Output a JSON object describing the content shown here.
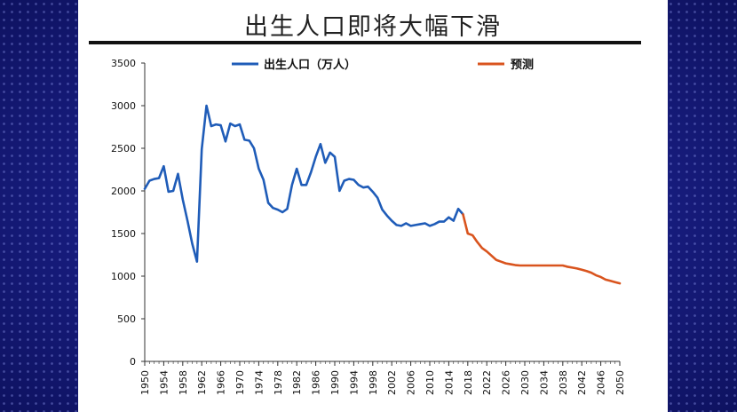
{
  "slide": {
    "title": "出生人口即将大幅下滑"
  },
  "colors": {
    "actual": "#1f5cb8",
    "forecast": "#d9541e",
    "slide_bg": "#ffffff",
    "backdrop": "#1a1f8a"
  },
  "chart_data": {
    "type": "line",
    "title": "出生人口即将大幅下滑",
    "xlabel": "",
    "ylabel": "",
    "xlim": [
      1950,
      2050
    ],
    "ylim": [
      0,
      3500
    ],
    "yticks": [
      0,
      500,
      1000,
      1500,
      2000,
      2500,
      3000,
      3500
    ],
    "xticks": [
      1950,
      1954,
      1958,
      1962,
      1966,
      1970,
      1974,
      1978,
      1982,
      1986,
      1990,
      1994,
      1998,
      2002,
      2006,
      2010,
      2014,
      2018,
      2022,
      2026,
      2030,
      2034,
      2038,
      2042,
      2046,
      2050
    ],
    "grid": false,
    "legend_position": "top",
    "series": [
      {
        "name": "出生人口（万人）",
        "color": "#1f5cb8",
        "x": [
          1950,
          1951,
          1952,
          1953,
          1954,
          1955,
          1956,
          1957,
          1958,
          1959,
          1960,
          1961,
          1962,
          1963,
          1964,
          1965,
          1966,
          1967,
          1968,
          1969,
          1970,
          1971,
          1972,
          1973,
          1974,
          1975,
          1976,
          1977,
          1978,
          1979,
          1980,
          1981,
          1982,
          1983,
          1984,
          1985,
          1986,
          1987,
          1988,
          1989,
          1990,
          1991,
          1992,
          1993,
          1994,
          1995,
          1996,
          1997,
          1998,
          1999,
          2000,
          2001,
          2002,
          2003,
          2004,
          2005,
          2006,
          2007,
          2008,
          2009,
          2010,
          2011,
          2012,
          2013,
          2014,
          2015,
          2016,
          2017
        ],
        "values": [
          2025,
          2120,
          2140,
          2150,
          2290,
          1990,
          2000,
          2200,
          1900,
          1650,
          1380,
          1170,
          2490,
          3000,
          2760,
          2780,
          2770,
          2580,
          2790,
          2760,
          2780,
          2600,
          2590,
          2500,
          2260,
          2130,
          1860,
          1800,
          1780,
          1750,
          1790,
          2070,
          2260,
          2070,
          2070,
          2220,
          2400,
          2550,
          2330,
          2450,
          2400,
          2000,
          2120,
          2140,
          2130,
          2070,
          2040,
          2050,
          1990,
          1920,
          1780,
          1710,
          1650,
          1600,
          1590,
          1620,
          1590,
          1600,
          1610,
          1620,
          1590,
          1610,
          1640,
          1640,
          1690,
          1650,
          1790,
          1725
        ]
      },
      {
        "name": "预测",
        "color": "#d9541e",
        "x": [
          2017,
          2018,
          2019,
          2020,
          2021,
          2022,
          2023,
          2024,
          2025,
          2026,
          2027,
          2028,
          2029,
          2030,
          2031,
          2032,
          2033,
          2034,
          2035,
          2036,
          2037,
          2038,
          2039,
          2040,
          2041,
          2042,
          2043,
          2044,
          2045,
          2046,
          2047,
          2048,
          2049,
          2050
        ],
        "values": [
          1725,
          1500,
          1480,
          1400,
          1330,
          1290,
          1240,
          1190,
          1170,
          1150,
          1140,
          1130,
          1125,
          1125,
          1125,
          1125,
          1125,
          1125,
          1125,
          1125,
          1125,
          1125,
          1110,
          1100,
          1090,
          1075,
          1060,
          1040,
          1010,
          990,
          960,
          945,
          930,
          915
        ]
      }
    ]
  }
}
